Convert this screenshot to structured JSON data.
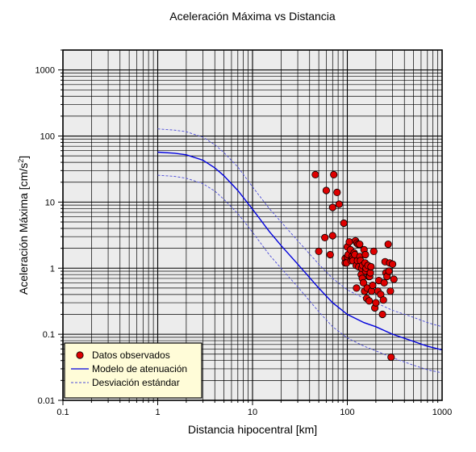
{
  "chart_data": {
    "type": "scatter",
    "title": "Aceleración Máxima vs Distancia",
    "xlabel": "Distancia hipocentral [km]",
    "ylabel_main": "Aceleración Máxima [cm/s",
    "ylabel_sup": "2",
    "ylabel_tail": "]",
    "xscale": "log",
    "yscale": "log",
    "xlim": [
      0.1,
      1000
    ],
    "ylim": [
      0.01,
      2000
    ],
    "grid": true,
    "legend_position": "bottom-left",
    "x_ticks": [
      {
        "value": 0.1,
        "label": "0.1"
      },
      {
        "value": 1,
        "label": "1"
      },
      {
        "value": 10,
        "label": "10"
      },
      {
        "value": 100,
        "label": "100"
      },
      {
        "value": 1000,
        "label": "1000"
      }
    ],
    "y_ticks": [
      {
        "value": 0.01,
        "label": "0.01"
      },
      {
        "value": 0.1,
        "label": "0.1"
      },
      {
        "value": 1,
        "label": "1"
      },
      {
        "value": 10,
        "label": "10"
      },
      {
        "value": 100,
        "label": "100"
      },
      {
        "value": 1000,
        "label": "1000"
      }
    ],
    "legend": [
      {
        "label": "Datos observados",
        "kind": "marker"
      },
      {
        "label": "Modelo de atenuación",
        "kind": "solid"
      },
      {
        "label": "Desviación estándar",
        "kind": "dashed"
      }
    ],
    "colors": {
      "points": "#dd0000",
      "model": "#0000dd",
      "std": "#4a4ad8",
      "plot_bg": "#ececec",
      "legend_bg": "#fffcd8"
    },
    "series": [
      {
        "name": "Datos observados",
        "type": "scatter",
        "x": [
          46,
          50,
          58,
          60,
          66,
          70,
          70,
          72,
          78,
          82,
          92,
          95,
          95,
          98,
          100,
          100,
          102,
          105,
          108,
          110,
          112,
          114,
          115,
          118,
          120,
          122,
          124,
          125,
          126,
          128,
          130,
          132,
          135,
          136,
          138,
          140,
          142,
          144,
          145,
          148,
          150,
          152,
          154,
          155,
          156,
          158,
          160,
          162,
          165,
          168,
          170,
          172,
          175,
          178,
          180,
          185,
          190,
          195,
          200,
          210,
          215,
          225,
          235,
          240,
          245,
          250,
          255,
          262,
          270,
          275,
          280,
          285,
          290,
          300,
          310
        ],
        "y": [
          26,
          1.8,
          2.9,
          15,
          1.6,
          3.1,
          8.3,
          26,
          14,
          9.3,
          4.8,
          1.4,
          1.2,
          1.2,
          2.1,
          1.5,
          1.6,
          2.5,
          1.9,
          1.3,
          1.5,
          1.4,
          1.3,
          1.7,
          1.6,
          2.6,
          1.1,
          0.5,
          2.4,
          1.3,
          2.3,
          1.05,
          2.3,
          1.5,
          1.3,
          0.8,
          1.0,
          0.7,
          1.1,
          0.6,
          1.9,
          0.45,
          1.2,
          1.6,
          0.9,
          1.0,
          0.35,
          0.5,
          1.1,
          0.75,
          0.32,
          0.75,
          0.85,
          1.05,
          0.45,
          0.55,
          1.8,
          0.25,
          0.3,
          0.45,
          0.65,
          0.4,
          0.2,
          0.33,
          0.6,
          1.25,
          0.85,
          0.75,
          2.3,
          0.9,
          1.2,
          0.45,
          0.045,
          1.15,
          0.68
        ]
      },
      {
        "name": "Modelo de atenuación",
        "type": "line",
        "x": [
          1,
          1.5,
          2,
          3,
          4,
          5,
          7,
          10,
          15,
          20,
          30,
          50,
          70,
          100,
          150,
          200,
          300,
          500,
          700,
          1000
        ],
        "y": [
          57,
          55,
          52,
          43,
          33,
          25,
          15,
          7.8,
          3.6,
          2.2,
          1.15,
          0.5,
          0.3,
          0.2,
          0.15,
          0.13,
          0.1,
          0.078,
          0.066,
          0.058
        ]
      },
      {
        "name": "Desviación estándar (superior)",
        "type": "line",
        "x": [
          1,
          1.5,
          2,
          3,
          4,
          5,
          7,
          10,
          15,
          20,
          30,
          50,
          70,
          100,
          150,
          200,
          300,
          500,
          700,
          1000
        ],
        "y": [
          128,
          123,
          116,
          96,
          74,
          56,
          34,
          17,
          8,
          5,
          2.6,
          1.15,
          0.7,
          0.47,
          0.35,
          0.3,
          0.23,
          0.18,
          0.15,
          0.13
        ]
      },
      {
        "name": "Desviación estándar (inferior)",
        "type": "line",
        "x": [
          1,
          1.5,
          2,
          3,
          4,
          5,
          7,
          10,
          15,
          20,
          30,
          50,
          70,
          100,
          150,
          200,
          300,
          500,
          700,
          1000
        ],
        "y": [
          25.5,
          24.5,
          23,
          19,
          14.7,
          11,
          6.7,
          3.5,
          1.6,
          1.0,
          0.52,
          0.22,
          0.13,
          0.088,
          0.066,
          0.056,
          0.044,
          0.034,
          0.029,
          0.026
        ]
      }
    ]
  }
}
